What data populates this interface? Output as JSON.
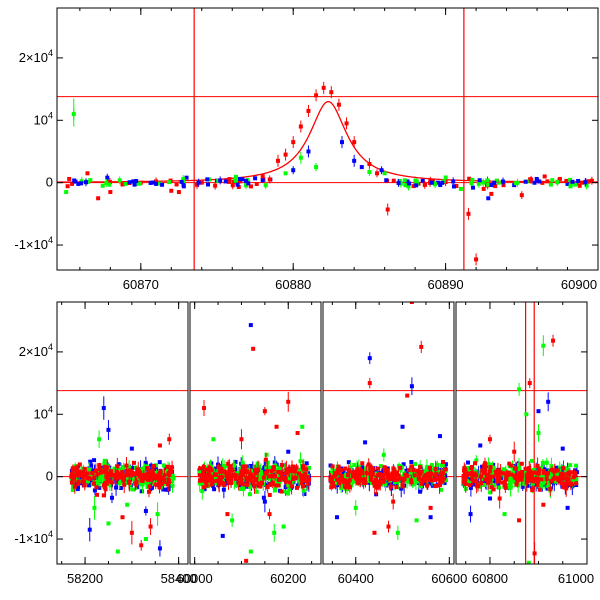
{
  "colors": {
    "red": "#ff0000",
    "green": "#00ff00",
    "blue": "#0000ff",
    "axis": "#000000"
  },
  "chart_data": [
    {
      "type": "scatter",
      "title": "",
      "xlabel": "",
      "ylabel": "",
      "xlim": [
        60864.5,
        60900
      ],
      "ylim": [
        -14000,
        28000
      ],
      "x_ticks": [
        {
          "value": 60870,
          "label": "60870"
        },
        {
          "value": 60880,
          "label": "60880"
        },
        {
          "value": 60890,
          "label": "60890"
        },
        {
          "value": 60900,
          "label": "60900"
        }
      ],
      "y_ticks": [
        {
          "value": 20000,
          "label": "2×10",
          "sup": "4"
        },
        {
          "value": 10000,
          "label": "10",
          "sup": "4"
        },
        {
          "value": 0,
          "label": "0",
          "sup": ""
        },
        {
          "value": -10000,
          "label": "-1×10",
          "sup": "4"
        }
      ],
      "hlines": [
        0,
        13800
      ],
      "vlines": [
        60873.5,
        60891.2
      ],
      "model_curve": {
        "color": "red",
        "baseline": 0,
        "peak_x": 60882.3,
        "peak_y": 13000,
        "width": 1.5
      },
      "series": [
        {
          "color": "red",
          "points": [
            [
              60865.3,
              600
            ],
            [
              60866.5,
              1500
            ],
            [
              60867.2,
              -2500
            ],
            [
              60868.0,
              -1500
            ],
            [
              60868.8,
              -300
            ],
            [
              60870.0,
              0
            ],
            [
              60871.0,
              200
            ],
            [
              60872.0,
              -1300
            ],
            [
              60872.5,
              -1500
            ],
            [
              60874.0,
              0
            ],
            [
              60875.0,
              300
            ],
            [
              60876.5,
              200
            ],
            [
              60878.0,
              1000
            ],
            [
              60879.0,
              3500
            ],
            [
              60879.5,
              4500
            ],
            [
              60880.0,
              6500
            ],
            [
              60880.5,
              9000
            ],
            [
              60881.0,
              11500
            ],
            [
              60881.5,
              14000
            ],
            [
              60882.0,
              15200
            ],
            [
              60882.5,
              14500
            ],
            [
              60883.0,
              12500
            ],
            [
              60883.5,
              9500
            ],
            [
              60884.0,
              6500
            ],
            [
              60885.0,
              3000
            ],
            [
              60885.5,
              1500
            ],
            [
              60886.2,
              -4300
            ],
            [
              60887.0,
              0
            ],
            [
              60889.0,
              300
            ],
            [
              60890.0,
              100
            ],
            [
              60891.5,
              -5000
            ],
            [
              60892.0,
              -12300
            ],
            [
              60892.5,
              -1000
            ],
            [
              60893.0,
              -1800
            ],
            [
              60893.8,
              -400
            ],
            [
              60895.0,
              -2000
            ],
            [
              60896.5,
              1000
            ],
            [
              60897.5,
              600
            ],
            [
              60898.8,
              -500
            ],
            [
              60899.6,
              300
            ]
          ]
        },
        {
          "color": "green",
          "points": [
            [
              60865.1,
              -1500
            ],
            [
              60865.6,
              11000
            ],
            [
              60867.5,
              -500
            ],
            [
              60869.0,
              -200
            ],
            [
              60876.0,
              200
            ],
            [
              60877.0,
              400
            ],
            [
              60879.5,
              1500
            ],
            [
              60880.5,
              4000
            ],
            [
              60881.5,
              2500
            ],
            [
              60885.0,
              1700
            ],
            [
              60886.0,
              1500
            ],
            [
              60888.0,
              -400
            ],
            [
              60891.0,
              -1000
            ],
            [
              60893.5,
              0
            ],
            [
              60897.0,
              400
            ],
            [
              60899.0,
              0
            ]
          ]
        },
        {
          "color": "blue",
          "points": [
            [
              60867.8,
              800
            ],
            [
              60869.5,
              200
            ],
            [
              60871.0,
              -200
            ],
            [
              60873.0,
              800
            ],
            [
              60875.0,
              300
            ],
            [
              60876.5,
              600
            ],
            [
              60877.5,
              700
            ],
            [
              60878.5,
              500
            ],
            [
              60880.0,
              2000
            ],
            [
              60881.0,
              5000
            ],
            [
              60883.2,
              6500
            ],
            [
              60884.0,
              3500
            ],
            [
              60884.5,
              2500
            ],
            [
              60885.8,
              2000
            ],
            [
              60887.5,
              200
            ],
            [
              60888.5,
              300
            ],
            [
              60889.5,
              0
            ],
            [
              60890.5,
              200
            ],
            [
              60891.8,
              -800
            ],
            [
              60892.8,
              -2500
            ],
            [
              60894.5,
              -400
            ],
            [
              60896.0,
              400
            ],
            [
              60898.0,
              -200
            ],
            [
              60899.2,
              100
            ]
          ]
        }
      ]
    },
    {
      "type": "scatter",
      "title": "",
      "xlabel": "",
      "ylabel": "",
      "ylim": [
        -14000,
        28000
      ],
      "y_ticks": [
        {
          "value": 20000,
          "label": "2×10",
          "sup": "4"
        },
        {
          "value": 10000,
          "label": "10",
          "sup": "4"
        },
        {
          "value": 0,
          "label": "0",
          "sup": ""
        },
        {
          "value": -10000,
          "label": "-1×10",
          "sup": "4"
        }
      ],
      "hlines": [
        0,
        13800
      ],
      "vlines": [
        60873.5,
        60891.2
      ],
      "panels": [
        {
          "xlim": [
            58140,
            58420
          ],
          "x_ticks": [
            {
              "value": 58200,
              "label": "58200"
            },
            {
              "value": 58400,
              "label": "58400"
            }
          ],
          "band": [
            58170,
            58390
          ],
          "count": 160,
          "sigma": 1000,
          "outliers": [
            [
              "red",
              58240,
              -3000
            ],
            [
              "red",
              58280,
              -6500
            ],
            [
              "red",
              58300,
              -9000
            ],
            [
              "red",
              58340,
              -8000
            ],
            [
              "red",
              58360,
              5000
            ],
            [
              "red",
              58380,
              6000
            ],
            [
              "red",
              58320,
              -11000
            ],
            [
              "green",
              58220,
              -5000
            ],
            [
              "green",
              58250,
              -7500
            ],
            [
              "green",
              58270,
              -12000
            ],
            [
              "green",
              58290,
              -4500
            ],
            [
              "green",
              58330,
              -10000
            ],
            [
              "green",
              58355,
              -6000
            ],
            [
              "green",
              58230,
              6000
            ],
            [
              "blue",
              58210,
              -8500
            ],
            [
              "blue",
              58240,
              11000
            ],
            [
              "blue",
              58250,
              7500
            ],
            [
              "blue",
              58300,
              4500
            ],
            [
              "blue",
              58330,
              -5500
            ],
            [
              "blue",
              58360,
              -11500
            ]
          ]
        },
        {
          "xlim": [
            59990,
            60270
          ],
          "x_ticks": [
            {
              "value": 60000,
              "label": "60000"
            },
            {
              "value": 60200,
              "label": "60200"
            }
          ],
          "band": [
            60010,
            60245
          ],
          "count": 180,
          "sigma": 1000,
          "outliers": [
            [
              "red",
              60020,
              11000
            ],
            [
              "red",
              60100,
              6000
            ],
            [
              "red",
              60125,
              20500
            ],
            [
              "red",
              60150,
              10500
            ],
            [
              "red",
              60175,
              8000
            ],
            [
              "red",
              60200,
              12000
            ],
            [
              "red",
              60070,
              -6000
            ],
            [
              "red",
              60110,
              -13500
            ],
            [
              "red",
              60160,
              -6000
            ],
            [
              "red",
              60220,
              7000
            ],
            [
              "green",
              60040,
              6000
            ],
            [
              "green",
              60080,
              -7000
            ],
            [
              "green",
              60120,
              -12000
            ],
            [
              "green",
              60190,
              -8000
            ],
            [
              "green",
              60230,
              8000
            ],
            [
              "green",
              60170,
              -9000
            ],
            [
              "blue",
              60120,
              24300
            ],
            [
              "blue",
              60060,
              -9500
            ],
            [
              "blue",
              60200,
              4000
            ],
            [
              "blue",
              60150,
              -4000
            ]
          ]
        },
        {
          "xlim": [
            60330,
            60610
          ],
          "x_ticks": [
            {
              "value": 60400,
              "label": "60400"
            },
            {
              "value": 60600,
              "label": "60600"
            }
          ],
          "band": [
            60345,
            60595
          ],
          "count": 170,
          "sigma": 900,
          "outliers": [
            [
              "red",
              60430,
              15000
            ],
            [
              "red",
              60480,
              -4000
            ],
            [
              "red",
              60510,
              13000
            ],
            [
              "red",
              60540,
              20800
            ],
            [
              "red",
              60520,
              28000
            ],
            [
              "red",
              60440,
              -9000
            ],
            [
              "red",
              60470,
              -8000
            ],
            [
              "red",
              60560,
              -5000
            ],
            [
              "green",
              60400,
              -5000
            ],
            [
              "green",
              60460,
              3500
            ],
            [
              "green",
              60490,
              -9000
            ],
            [
              "green",
              60530,
              -7000
            ],
            [
              "blue",
              60360,
              -6500
            ],
            [
              "blue",
              60420,
              5500
            ],
            [
              "blue",
              60430,
              19000
            ],
            [
              "blue",
              60500,
              8000
            ],
            [
              "blue",
              60560,
              -6500
            ],
            [
              "blue",
              60580,
              6500
            ],
            [
              "blue",
              60520,
              14500
            ]
          ]
        },
        {
          "xlim": [
            60730,
            61000
          ],
          "x_ticks": [
            {
              "value": 60800,
              "label": "60800"
            },
            {
              "value": 61000,
              "label": "61000"
            }
          ],
          "band": [
            60745,
            60980
          ],
          "count": 170,
          "sigma": 900,
          "outliers": [
            [
              "red",
              60800,
              6000
            ],
            [
              "red",
              60850,
              4000
            ],
            [
              "red",
              60882,
              15000
            ],
            [
              "red",
              60892,
              -12300
            ],
            [
              "red",
              60930,
              21800
            ],
            [
              "red",
              60910,
              -4500
            ],
            [
              "red",
              60860,
              -7000
            ],
            [
              "red",
              60820,
              -3500
            ],
            [
              "green",
              60830,
              -6000
            ],
            [
              "green",
              60860,
              14000
            ],
            [
              "green",
              60900,
              7000
            ],
            [
              "green",
              60910,
              21000
            ],
            [
              "green",
              60875,
              10000
            ],
            [
              "green",
              60880,
              -13800
            ],
            [
              "blue",
              60760,
              -6000
            ],
            [
              "blue",
              60780,
              5000
            ],
            [
              "blue",
              60900,
              10500
            ],
            [
              "blue",
              60920,
              12000
            ],
            [
              "blue",
              60950,
              4500
            ],
            [
              "blue",
              60960,
              -5000
            ],
            [
              "blue",
              60800,
              -3500
            ]
          ]
        }
      ]
    }
  ]
}
